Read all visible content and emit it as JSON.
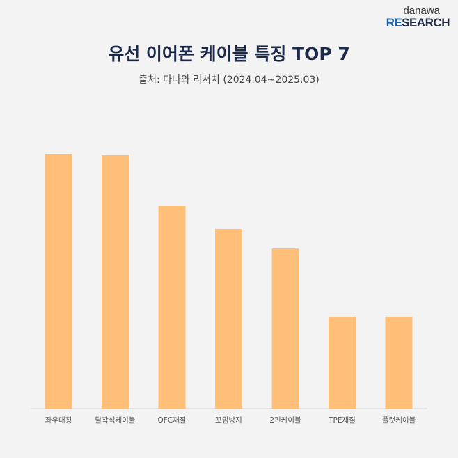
{
  "logo": {
    "top": "danawa",
    "bottom_accent": "RE",
    "bottom_rest": "SEARCH"
  },
  "chart_data": {
    "type": "bar",
    "title": "유선 이어폰 케이블 특징 TOP 7",
    "subtitle": "출처: 다나와 리서치 (2024.04~2025.03)",
    "categories": [
      "좌우대칭",
      "탈착식케이블",
      "OFC재질",
      "꼬임방지",
      "2핀케이블",
      "TPE재질",
      "플랫케이블"
    ],
    "values": [
      100,
      99.5,
      79.5,
      70.5,
      62.8,
      36.1,
      36.1
    ],
    "xlabel": "",
    "ylabel": "",
    "ylim": [
      0,
      100
    ],
    "grid": false,
    "bar_color": "#FFBF78"
  }
}
